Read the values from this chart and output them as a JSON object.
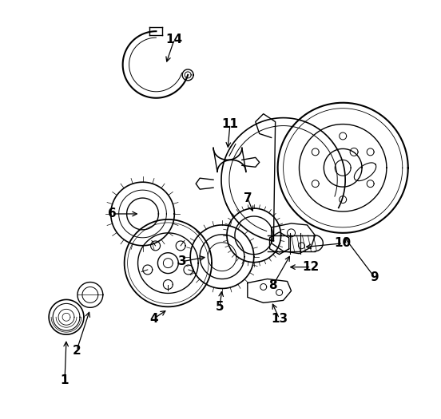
{
  "background_color": "#ffffff",
  "line_color": "#000000",
  "label_color": "#000000",
  "figsize": [
    5.52,
    5.25
  ],
  "dpi": 100
}
